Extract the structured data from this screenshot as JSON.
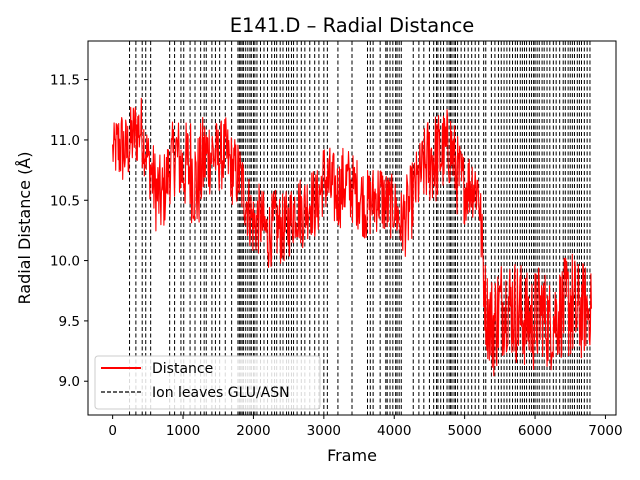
{
  "chart_data": {
    "type": "line",
    "title": "E141.D – Radial Distance",
    "xlabel": "Frame",
    "ylabel": "Radial Distance (Å)",
    "xlim": [
      -350,
      7150
    ],
    "ylim": [
      8.72,
      11.82
    ],
    "xticks": [
      0,
      1000,
      2000,
      3000,
      4000,
      5000,
      6000,
      7000
    ],
    "xtick_labels": [
      "0",
      "1000",
      "2000",
      "3000",
      "4000",
      "5000",
      "6000",
      "7000"
    ],
    "yticks": [
      9.0,
      9.5,
      10.0,
      10.5,
      11.0,
      11.5
    ],
    "ytick_labels": [
      "9.0",
      "9.5",
      "10.0",
      "10.5",
      "11.0",
      "11.5"
    ],
    "grid": false,
    "legend_position": "lower-left",
    "series": [
      {
        "name": "Distance",
        "color": "#ff0000",
        "style": "solid",
        "x": [
          0,
          100,
          200,
          300,
          400,
          500,
          600,
          700,
          800,
          900,
          1000,
          1100,
          1200,
          1300,
          1400,
          1500,
          1600,
          1700,
          1800,
          1900,
          2000,
          2100,
          2200,
          2300,
          2400,
          2500,
          2600,
          2700,
          2800,
          2900,
          3000,
          3100,
          3200,
          3300,
          3400,
          3500,
          3600,
          3700,
          3800,
          3900,
          4000,
          4100,
          4200,
          4300,
          4400,
          4500,
          4600,
          4700,
          4800,
          4900,
          5000,
          5100,
          5200,
          5300,
          5400,
          5500,
          5600,
          5700,
          5800,
          5900,
          6000,
          6100,
          6200,
          6300,
          6400,
          6500,
          6600,
          6700,
          6800
        ],
        "y": [
          10.9,
          10.95,
          10.9,
          11.05,
          11.1,
          10.85,
          10.6,
          10.5,
          10.75,
          10.9,
          10.75,
          10.8,
          10.6,
          10.85,
          10.9,
          10.85,
          10.9,
          10.75,
          10.7,
          10.5,
          10.3,
          10.35,
          10.2,
          10.3,
          10.25,
          10.3,
          10.45,
          10.4,
          10.5,
          10.45,
          10.7,
          10.6,
          10.55,
          10.65,
          10.6,
          10.55,
          10.45,
          10.5,
          10.55,
          10.45,
          10.45,
          10.3,
          10.4,
          10.6,
          10.75,
          10.85,
          10.85,
          10.9,
          10.95,
          10.7,
          10.6,
          10.65,
          10.6,
          9.6,
          9.45,
          9.6,
          9.65,
          9.6,
          9.55,
          9.5,
          9.5,
          9.6,
          9.45,
          9.55,
          9.6,
          9.65,
          9.55,
          9.6,
          9.6
        ],
        "spread": [
          0.2,
          0.35,
          0.3,
          0.3,
          0.3,
          0.25,
          0.35,
          0.35,
          0.3,
          0.35,
          0.35,
          0.45,
          0.45,
          0.4,
          0.35,
          0.3,
          0.3,
          0.3,
          0.3,
          0.3,
          0.3,
          0.3,
          0.3,
          0.3,
          0.3,
          0.3,
          0.3,
          0.3,
          0.3,
          0.3,
          0.3,
          0.35,
          0.3,
          0.35,
          0.3,
          0.3,
          0.3,
          0.3,
          0.3,
          0.3,
          0.25,
          0.3,
          0.35,
          0.3,
          0.3,
          0.4,
          0.4,
          0.35,
          0.35,
          0.35,
          0.3,
          0.3,
          0.3,
          0.35,
          0.45,
          0.45,
          0.4,
          0.45,
          0.45,
          0.4,
          0.45,
          0.4,
          0.4,
          0.4,
          0.4,
          0.5,
          0.45,
          0.4,
          0.3
        ]
      },
      {
        "name": "Ion leaves GLU/ASN",
        "color": "#000000",
        "style": "dashed",
        "type": "vlines",
        "x": [
          240,
          330,
          420,
          470,
          540,
          810,
          880,
          970,
          1010,
          1100,
          1170,
          1250,
          1300,
          1330,
          1410,
          1460,
          1520,
          1600,
          1690,
          1780,
          1800,
          1820,
          1840,
          1860,
          1890,
          1920,
          1950,
          1970,
          2000,
          2020,
          2050,
          2100,
          2150,
          2200,
          2260,
          2300,
          2330,
          2380,
          2420,
          2470,
          2500,
          2540,
          2570,
          2620,
          2680,
          2730,
          2800,
          2870,
          2930,
          3000,
          3050,
          3200,
          3400,
          3620,
          3660,
          3700,
          3800,
          3880,
          3900,
          3940,
          3980,
          4020,
          4040,
          4070,
          4100,
          4270,
          4350,
          4420,
          4500,
          4560,
          4600,
          4620,
          4660,
          4700,
          4750,
          4780,
          4800,
          4820,
          4850,
          4870,
          4900,
          4950,
          5000,
          5050,
          5100,
          5150,
          5200,
          5270,
          5300,
          5380,
          5430,
          5480,
          5520,
          5560,
          5600,
          5640,
          5680,
          5720,
          5750,
          5790,
          5820,
          5850,
          5880,
          5920,
          5950,
          5980,
          6000,
          6030,
          6060,
          6100,
          6130,
          6170,
          6210,
          6260,
          6300,
          6350,
          6400,
          6430,
          6470,
          6500,
          6530,
          6560,
          6600,
          6630,
          6660,
          6700,
          6740,
          6780
        ]
      }
    ]
  }
}
